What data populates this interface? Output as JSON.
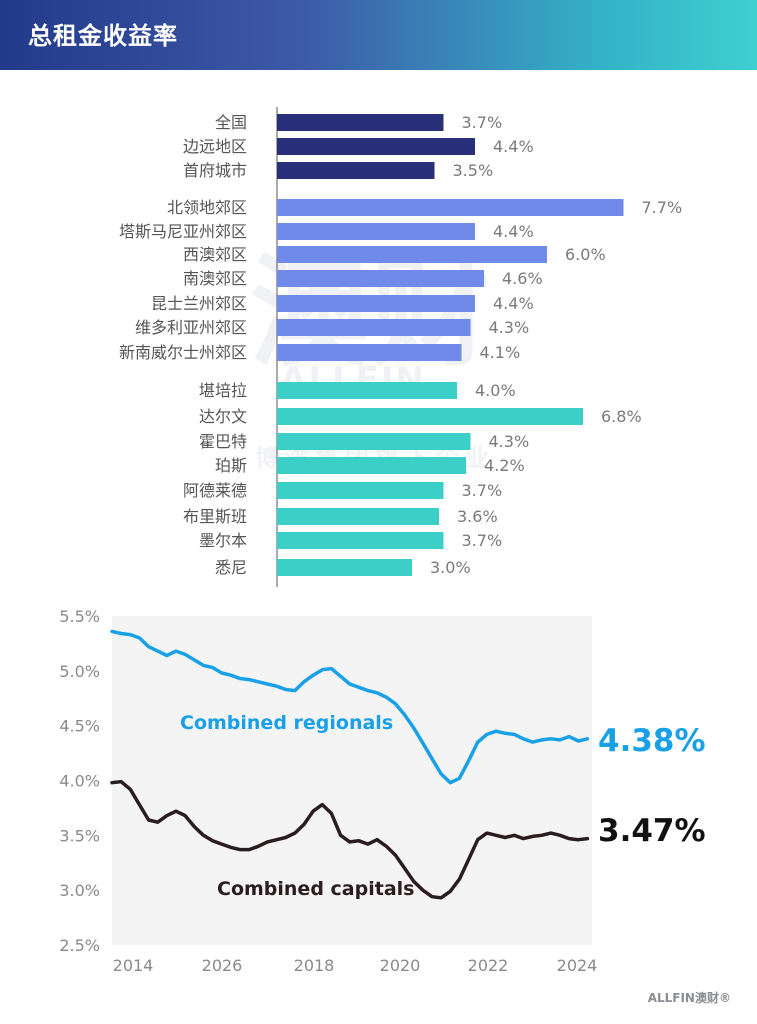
{
  "header": {
    "title": "总租金收益率"
  },
  "watermarks": {
    "logo_cn": "澳财",
    "logo_en": "ALLFIN",
    "reg": "®",
    "company": "博湾集团旗下企业"
  },
  "footer": {
    "logo_en": "ALLFIN",
    "logo_cn": "澳财",
    "reg": "®"
  },
  "colors": {
    "national": "#2a2f7a",
    "suburbs": "#6f8ae8",
    "cities": "#3ccfc8",
    "regionals_line": "#1aa0e6",
    "capitals_line": "#2a1c1f",
    "label": "#555555",
    "value": "#7a7a7a"
  },
  "chart_data": [
    {
      "type": "bar",
      "orientation": "horizontal",
      "categories": [
        "全国",
        "边远地区",
        "首府城市",
        "北领地郊区",
        "塔斯马尼亚州郊区",
        "西澳郊区",
        "南澳郊区",
        "昆士兰州郊区",
        "维多利亚州郊区",
        "新南威尔士州郊区",
        "堪培拉",
        "达尔文",
        "霍巴特",
        "珀斯",
        "阿德莱德",
        "布里斯班",
        "墨尔本",
        "悉尼"
      ],
      "values": [
        3.7,
        4.4,
        3.5,
        7.7,
        4.4,
        6.0,
        4.6,
        4.4,
        4.3,
        4.1,
        4.0,
        6.8,
        4.3,
        4.2,
        3.7,
        3.6,
        3.7,
        3.0
      ],
      "value_labels": [
        "3.7%",
        "4.4%",
        "3.5%",
        "7.7%",
        "4.4%",
        "6.0%",
        "4.6%",
        "4.4%",
        "4.3%",
        "4.1%",
        "4.0%",
        "6.8%",
        "4.3%",
        "4.2%",
        "3.7%",
        "3.6%",
        "3.7%",
        "3.0%"
      ],
      "groups": [
        "national",
        "national",
        "national",
        "suburbs",
        "suburbs",
        "suburbs",
        "suburbs",
        "suburbs",
        "suburbs",
        "suburbs",
        "cities",
        "cities",
        "cities",
        "cities",
        "cities",
        "cities",
        "cities",
        "cities"
      ]
    },
    {
      "type": "line",
      "x_tick_labels": [
        "2014",
        "2026",
        "2018",
        "2020",
        "2022",
        "2024"
      ],
      "y_tick_labels": [
        "5.5%",
        "5.0%",
        "4.5%",
        "4.0%",
        "3.5%",
        "3.0%",
        "2.5%"
      ],
      "ylim": [
        2.5,
        5.5
      ],
      "xlim": [
        2014.0,
        2024.5
      ],
      "series": [
        {
          "name": "Combined regionals",
          "end_label": "4.38%",
          "x": [
            2014.0,
            2014.2,
            2014.4,
            2014.6,
            2014.8,
            2015.0,
            2015.2,
            2015.4,
            2015.6,
            2015.8,
            2016.0,
            2016.2,
            2016.4,
            2016.6,
            2016.8,
            2017.0,
            2017.2,
            2017.4,
            2017.6,
            2017.8,
            2018.0,
            2018.2,
            2018.4,
            2018.6,
            2018.8,
            2019.0,
            2019.2,
            2019.4,
            2019.6,
            2019.8,
            2020.0,
            2020.2,
            2020.4,
            2020.6,
            2020.8,
            2021.0,
            2021.2,
            2021.4,
            2021.6,
            2021.8,
            2022.0,
            2022.2,
            2022.4,
            2022.6,
            2022.8,
            2023.0,
            2023.2,
            2023.4,
            2023.6,
            2023.8,
            2024.0,
            2024.2,
            2024.4
          ],
          "y": [
            5.36,
            5.34,
            5.33,
            5.3,
            5.22,
            5.18,
            5.14,
            5.18,
            5.15,
            5.1,
            5.05,
            5.03,
            4.98,
            4.96,
            4.93,
            4.92,
            4.9,
            4.88,
            4.86,
            4.83,
            4.82,
            4.9,
            4.96,
            5.01,
            5.02,
            4.95,
            4.88,
            4.85,
            4.82,
            4.8,
            4.76,
            4.7,
            4.6,
            4.48,
            4.34,
            4.2,
            4.06,
            3.98,
            4.02,
            4.18,
            4.35,
            4.42,
            4.45,
            4.43,
            4.42,
            4.38,
            4.35,
            4.37,
            4.38,
            4.37,
            4.4,
            4.36,
            4.38
          ]
        },
        {
          "name": "Combined capitals",
          "end_label": "3.47%",
          "x": [
            2014.0,
            2014.2,
            2014.4,
            2014.6,
            2014.8,
            2015.0,
            2015.2,
            2015.4,
            2015.6,
            2015.8,
            2016.0,
            2016.2,
            2016.4,
            2016.6,
            2016.8,
            2017.0,
            2017.2,
            2017.4,
            2017.6,
            2017.8,
            2018.0,
            2018.2,
            2018.4,
            2018.6,
            2018.8,
            2019.0,
            2019.2,
            2019.4,
            2019.6,
            2019.8,
            2020.0,
            2020.2,
            2020.4,
            2020.6,
            2020.8,
            2021.0,
            2021.2,
            2021.4,
            2021.6,
            2021.8,
            2022.0,
            2022.2,
            2022.4,
            2022.6,
            2022.8,
            2023.0,
            2023.2,
            2023.4,
            2023.6,
            2023.8,
            2024.0,
            2024.2,
            2024.4
          ],
          "y": [
            3.98,
            3.99,
            3.92,
            3.78,
            3.64,
            3.62,
            3.68,
            3.72,
            3.68,
            3.58,
            3.5,
            3.45,
            3.42,
            3.39,
            3.37,
            3.37,
            3.4,
            3.44,
            3.46,
            3.48,
            3.52,
            3.6,
            3.72,
            3.78,
            3.7,
            3.5,
            3.44,
            3.45,
            3.42,
            3.46,
            3.4,
            3.32,
            3.2,
            3.08,
            3.0,
            2.94,
            2.93,
            2.99,
            3.1,
            3.28,
            3.46,
            3.52,
            3.5,
            3.48,
            3.5,
            3.47,
            3.49,
            3.5,
            3.52,
            3.5,
            3.47,
            3.46,
            3.47
          ]
        }
      ]
    }
  ]
}
